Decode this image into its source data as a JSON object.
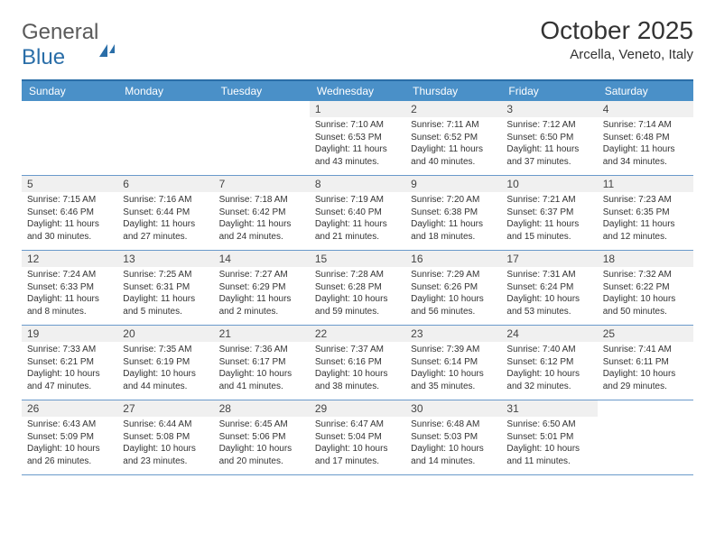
{
  "logo": {
    "part1": "General",
    "part2": "Blue"
  },
  "title": "October 2025",
  "location": "Arcella, Veneto, Italy",
  "weekdays": [
    "Sunday",
    "Monday",
    "Tuesday",
    "Wednesday",
    "Thursday",
    "Friday",
    "Saturday"
  ],
  "colors": {
    "accent": "#2a6ea8",
    "header_bg": "#4a90c8",
    "daynum_bg": "#f0f0f0",
    "text": "#333333",
    "border": "#6a9acb"
  },
  "weeks": [
    [
      null,
      null,
      null,
      {
        "day": "1",
        "sunrise": "7:10 AM",
        "sunset": "6:53 PM",
        "daylight": "11 hours and 43 minutes."
      },
      {
        "day": "2",
        "sunrise": "7:11 AM",
        "sunset": "6:52 PM",
        "daylight": "11 hours and 40 minutes."
      },
      {
        "day": "3",
        "sunrise": "7:12 AM",
        "sunset": "6:50 PM",
        "daylight": "11 hours and 37 minutes."
      },
      {
        "day": "4",
        "sunrise": "7:14 AM",
        "sunset": "6:48 PM",
        "daylight": "11 hours and 34 minutes."
      }
    ],
    [
      {
        "day": "5",
        "sunrise": "7:15 AM",
        "sunset": "6:46 PM",
        "daylight": "11 hours and 30 minutes."
      },
      {
        "day": "6",
        "sunrise": "7:16 AM",
        "sunset": "6:44 PM",
        "daylight": "11 hours and 27 minutes."
      },
      {
        "day": "7",
        "sunrise": "7:18 AM",
        "sunset": "6:42 PM",
        "daylight": "11 hours and 24 minutes."
      },
      {
        "day": "8",
        "sunrise": "7:19 AM",
        "sunset": "6:40 PM",
        "daylight": "11 hours and 21 minutes."
      },
      {
        "day": "9",
        "sunrise": "7:20 AM",
        "sunset": "6:38 PM",
        "daylight": "11 hours and 18 minutes."
      },
      {
        "day": "10",
        "sunrise": "7:21 AM",
        "sunset": "6:37 PM",
        "daylight": "11 hours and 15 minutes."
      },
      {
        "day": "11",
        "sunrise": "7:23 AM",
        "sunset": "6:35 PM",
        "daylight": "11 hours and 12 minutes."
      }
    ],
    [
      {
        "day": "12",
        "sunrise": "7:24 AM",
        "sunset": "6:33 PM",
        "daylight": "11 hours and 8 minutes."
      },
      {
        "day": "13",
        "sunrise": "7:25 AM",
        "sunset": "6:31 PM",
        "daylight": "11 hours and 5 minutes."
      },
      {
        "day": "14",
        "sunrise": "7:27 AM",
        "sunset": "6:29 PM",
        "daylight": "11 hours and 2 minutes."
      },
      {
        "day": "15",
        "sunrise": "7:28 AM",
        "sunset": "6:28 PM",
        "daylight": "10 hours and 59 minutes."
      },
      {
        "day": "16",
        "sunrise": "7:29 AM",
        "sunset": "6:26 PM",
        "daylight": "10 hours and 56 minutes."
      },
      {
        "day": "17",
        "sunrise": "7:31 AM",
        "sunset": "6:24 PM",
        "daylight": "10 hours and 53 minutes."
      },
      {
        "day": "18",
        "sunrise": "7:32 AM",
        "sunset": "6:22 PM",
        "daylight": "10 hours and 50 minutes."
      }
    ],
    [
      {
        "day": "19",
        "sunrise": "7:33 AM",
        "sunset": "6:21 PM",
        "daylight": "10 hours and 47 minutes."
      },
      {
        "day": "20",
        "sunrise": "7:35 AM",
        "sunset": "6:19 PM",
        "daylight": "10 hours and 44 minutes."
      },
      {
        "day": "21",
        "sunrise": "7:36 AM",
        "sunset": "6:17 PM",
        "daylight": "10 hours and 41 minutes."
      },
      {
        "day": "22",
        "sunrise": "7:37 AM",
        "sunset": "6:16 PM",
        "daylight": "10 hours and 38 minutes."
      },
      {
        "day": "23",
        "sunrise": "7:39 AM",
        "sunset": "6:14 PM",
        "daylight": "10 hours and 35 minutes."
      },
      {
        "day": "24",
        "sunrise": "7:40 AM",
        "sunset": "6:12 PM",
        "daylight": "10 hours and 32 minutes."
      },
      {
        "day": "25",
        "sunrise": "7:41 AM",
        "sunset": "6:11 PM",
        "daylight": "10 hours and 29 minutes."
      }
    ],
    [
      {
        "day": "26",
        "sunrise": "6:43 AM",
        "sunset": "5:09 PM",
        "daylight": "10 hours and 26 minutes."
      },
      {
        "day": "27",
        "sunrise": "6:44 AM",
        "sunset": "5:08 PM",
        "daylight": "10 hours and 23 minutes."
      },
      {
        "day": "28",
        "sunrise": "6:45 AM",
        "sunset": "5:06 PM",
        "daylight": "10 hours and 20 minutes."
      },
      {
        "day": "29",
        "sunrise": "6:47 AM",
        "sunset": "5:04 PM",
        "daylight": "10 hours and 17 minutes."
      },
      {
        "day": "30",
        "sunrise": "6:48 AM",
        "sunset": "5:03 PM",
        "daylight": "10 hours and 14 minutes."
      },
      {
        "day": "31",
        "sunrise": "6:50 AM",
        "sunset": "5:01 PM",
        "daylight": "10 hours and 11 minutes."
      },
      null
    ]
  ],
  "labels": {
    "sunrise": "Sunrise:",
    "sunset": "Sunset:",
    "daylight": "Daylight:"
  }
}
